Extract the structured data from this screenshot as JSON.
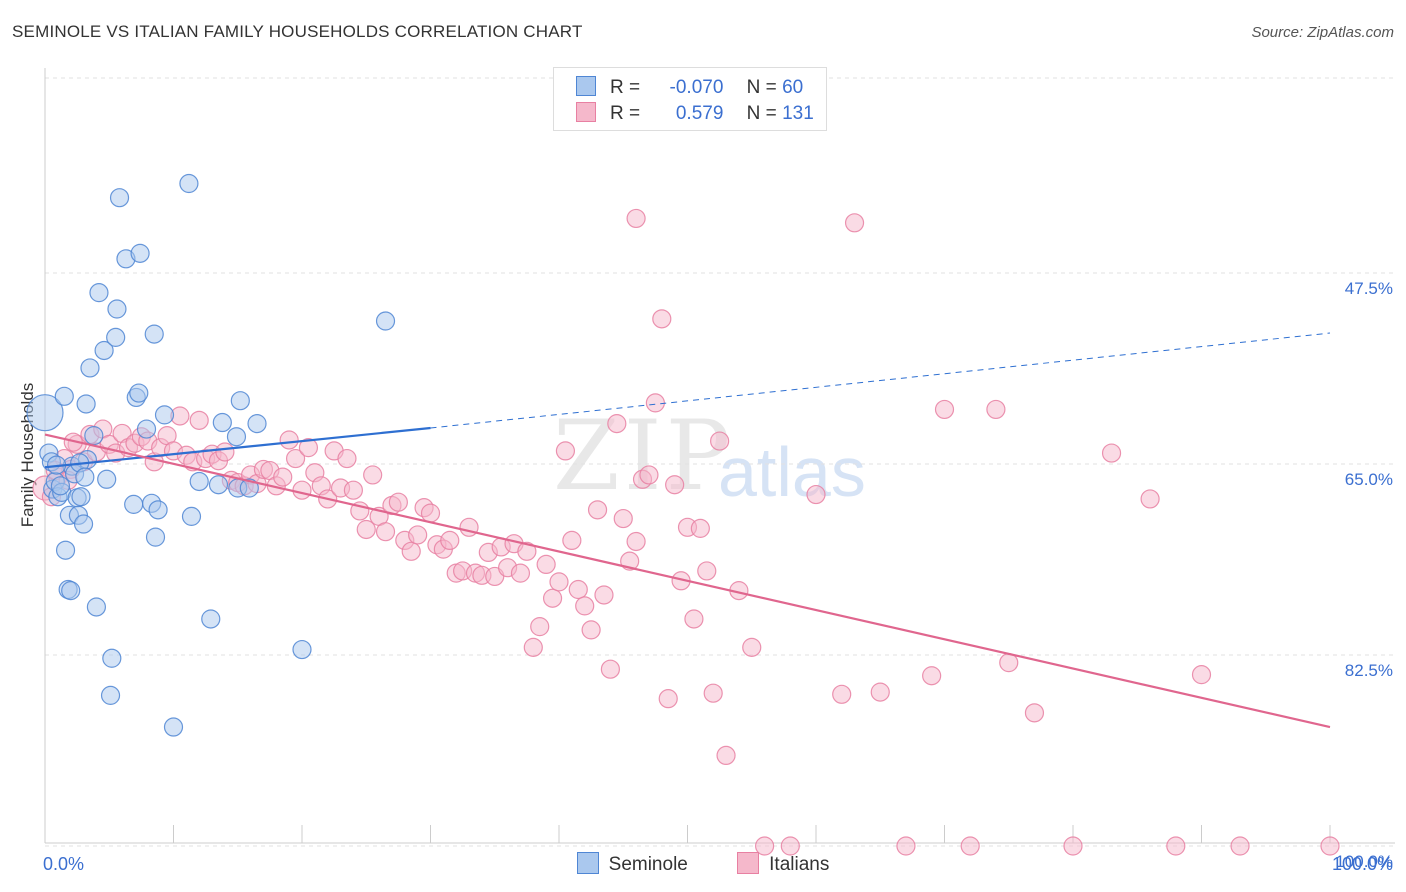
{
  "title": "SEMINOLE VS ITALIAN FAMILY HOUSEHOLDS CORRELATION CHART",
  "source": "Source: ZipAtlas.com",
  "watermark": {
    "zip": "ZIP",
    "atlas": "atlas"
  },
  "legend_top": {
    "rows": [
      {
        "r_label": "R =",
        "r_value": "-0.070",
        "n_label": "N =",
        "n_value": "60"
      },
      {
        "r_label": "R =",
        "r_value": "0.579",
        "n_label": "N =",
        "n_value": "131"
      }
    ]
  },
  "colors": {
    "seminole_fill": "#aac8ee",
    "seminole_stroke": "#4f86d4",
    "seminole_line": "#2e6fd1",
    "italians_fill": "#f5b8cb",
    "italians_stroke": "#e880a2",
    "italians_line": "#e0668e",
    "tick_label": "#3b6fd0",
    "grid": "#e2e2e2"
  },
  "chart_data": {
    "type": "scatter",
    "title": "SEMINOLE VS ITALIAN FAMILY HOUSEHOLDS CORRELATION CHART",
    "xlabel": "",
    "ylabel": "Family Households",
    "xlim": [
      0,
      100
    ],
    "ylim": [
      32.5,
      102.5
    ],
    "x_tick_labels": [
      "0.0%",
      "100.0%"
    ],
    "y_ticks": [
      47.5,
      65.0,
      82.5,
      100.0
    ],
    "y_tick_labels": [
      "47.5%",
      "65.0%",
      "82.5%",
      "100.0%"
    ],
    "grid": true,
    "legend_position": "bottom",
    "series": [
      {
        "name": "Seminole",
        "trend": {
          "x0": 0,
          "y0": 65.3,
          "x1": 30,
          "y1": 61.7,
          "dashed_to_x": 100,
          "dashed_to_y": 53.0
        },
        "points": [
          [
            0,
            60.3
          ],
          [
            0.3,
            64.0
          ],
          [
            0.5,
            64.8
          ],
          [
            0.6,
            67.3
          ],
          [
            0.8,
            66.6
          ],
          [
            1.0,
            68.0
          ],
          [
            1.3,
            67.6
          ],
          [
            1.5,
            58.8
          ],
          [
            1.6,
            72.9
          ],
          [
            1.8,
            76.5
          ],
          [
            1.9,
            69.7
          ],
          [
            2.0,
            76.6
          ],
          [
            2.1,
            65.2
          ],
          [
            2.3,
            65.9
          ],
          [
            2.5,
            68.1
          ],
          [
            2.6,
            69.7
          ],
          [
            2.8,
            68.0
          ],
          [
            3.0,
            70.5
          ],
          [
            3.2,
            59.5
          ],
          [
            3.3,
            64.6
          ],
          [
            3.5,
            56.2
          ],
          [
            3.8,
            62.4
          ],
          [
            4.0,
            78.1
          ],
          [
            4.2,
            49.3
          ],
          [
            4.6,
            54.6
          ],
          [
            5.1,
            86.2
          ],
          [
            5.2,
            82.8
          ],
          [
            5.5,
            53.4
          ],
          [
            5.6,
            50.8
          ],
          [
            5.8,
            40.6
          ],
          [
            6.3,
            46.2
          ],
          [
            6.9,
            68.7
          ],
          [
            7.1,
            58.9
          ],
          [
            7.3,
            58.5
          ],
          [
            7.4,
            45.7
          ],
          [
            7.9,
            61.8
          ],
          [
            8.3,
            68.6
          ],
          [
            8.5,
            53.1
          ],
          [
            8.6,
            71.7
          ],
          [
            8.8,
            69.2
          ],
          [
            9.3,
            60.5
          ],
          [
            10.0,
            89.1
          ],
          [
            11.2,
            39.3
          ],
          [
            11.4,
            69.8
          ],
          [
            12.0,
            66.6
          ],
          [
            12.9,
            79.2
          ],
          [
            13.5,
            66.9
          ],
          [
            13.8,
            61.2
          ],
          [
            14.9,
            62.5
          ],
          [
            15.0,
            67.2
          ],
          [
            15.2,
            59.2
          ],
          [
            15.9,
            67.2
          ],
          [
            16.5,
            61.3
          ],
          [
            20.0,
            82.0
          ],
          [
            26.5,
            51.9
          ],
          [
            1.2,
            67.0
          ],
          [
            2.7,
            64.9
          ],
          [
            3.1,
            66.2
          ],
          [
            0.9,
            65.1
          ],
          [
            4.8,
            66.4
          ]
        ]
      },
      {
        "name": "Italians",
        "trend": {
          "x0": 0,
          "y0": 62.3,
          "x1": 100,
          "y1": 89.1
        },
        "points": [
          [
            0,
            67.2
          ],
          [
            0.5,
            68.0
          ],
          [
            1.0,
            66.2
          ],
          [
            1.5,
            64.5
          ],
          [
            2.0,
            65.5
          ],
          [
            2.5,
            63.2
          ],
          [
            3.0,
            64.8
          ],
          [
            3.5,
            62.3
          ],
          [
            4.0,
            63.9
          ],
          [
            4.5,
            61.8
          ],
          [
            5.0,
            63.2
          ],
          [
            5.5,
            64.0
          ],
          [
            6.0,
            62.2
          ],
          [
            6.5,
            63.5
          ],
          [
            7.0,
            63.1
          ],
          [
            7.5,
            62.5
          ],
          [
            8.0,
            62.9
          ],
          [
            8.5,
            64.8
          ],
          [
            9.0,
            63.5
          ],
          [
            9.5,
            62.4
          ],
          [
            10.0,
            63.8
          ],
          [
            10.5,
            60.6
          ],
          [
            11.0,
            64.2
          ],
          [
            11.5,
            64.8
          ],
          [
            12.0,
            61.0
          ],
          [
            12.5,
            64.5
          ],
          [
            13.0,
            64.1
          ],
          [
            13.5,
            64.7
          ],
          [
            14.0,
            63.9
          ],
          [
            14.5,
            66.5
          ],
          [
            15.0,
            66.7
          ],
          [
            15.5,
            67.0
          ],
          [
            16.0,
            66.0
          ],
          [
            16.5,
            66.8
          ],
          [
            17.0,
            65.5
          ],
          [
            17.5,
            65.6
          ],
          [
            18.0,
            67.0
          ],
          [
            18.5,
            66.2
          ],
          [
            19.0,
            62.8
          ],
          [
            19.5,
            64.5
          ],
          [
            20.0,
            67.4
          ],
          [
            20.5,
            63.5
          ],
          [
            21.0,
            65.8
          ],
          [
            21.5,
            67.0
          ],
          [
            22.0,
            68.2
          ],
          [
            22.5,
            63.8
          ],
          [
            23.0,
            67.2
          ],
          [
            23.5,
            64.5
          ],
          [
            24.0,
            67.4
          ],
          [
            24.5,
            69.3
          ],
          [
            25.0,
            71.0
          ],
          [
            25.5,
            66.0
          ],
          [
            26.0,
            69.8
          ],
          [
            26.5,
            71.2
          ],
          [
            27.0,
            68.8
          ],
          [
            27.5,
            68.5
          ],
          [
            28.0,
            72.0
          ],
          [
            28.5,
            73.0
          ],
          [
            29.0,
            71.5
          ],
          [
            29.5,
            69.0
          ],
          [
            30.0,
            69.5
          ],
          [
            30.5,
            72.4
          ],
          [
            31.0,
            72.8
          ],
          [
            31.5,
            72.0
          ],
          [
            32.0,
            75.0
          ],
          [
            32.5,
            74.8
          ],
          [
            33.0,
            70.8
          ],
          [
            33.5,
            75.0
          ],
          [
            34.0,
            75.2
          ],
          [
            34.5,
            73.1
          ],
          [
            35.0,
            75.3
          ],
          [
            35.5,
            72.6
          ],
          [
            36.0,
            74.5
          ],
          [
            36.5,
            72.3
          ],
          [
            37.0,
            75.0
          ],
          [
            37.5,
            73.0
          ],
          [
            38.0,
            81.8
          ],
          [
            38.5,
            79.9
          ],
          [
            39.0,
            74.2
          ],
          [
            39.5,
            77.3
          ],
          [
            40.0,
            75.8
          ],
          [
            40.5,
            63.8
          ],
          [
            41.0,
            72.0
          ],
          [
            41.5,
            76.5
          ],
          [
            42.0,
            78.0
          ],
          [
            42.5,
            80.2
          ],
          [
            43.0,
            69.2
          ],
          [
            43.5,
            77.0
          ],
          [
            44.0,
            83.8
          ],
          [
            44.5,
            61.3
          ],
          [
            45.0,
            70.0
          ],
          [
            45.5,
            73.9
          ],
          [
            46.0,
            72.1
          ],
          [
            46.5,
            66.4
          ],
          [
            47.0,
            66.0
          ],
          [
            47.5,
            59.4
          ],
          [
            48.0,
            51.7
          ],
          [
            48.5,
            86.5
          ],
          [
            49.0,
            66.9
          ],
          [
            49.5,
            75.7
          ],
          [
            50.0,
            70.8
          ],
          [
            50.5,
            79.2
          ],
          [
            51.0,
            70.9
          ],
          [
            51.5,
            74.8
          ],
          [
            52.0,
            86.0
          ],
          [
            52.5,
            62.9
          ],
          [
            53.0,
            91.7
          ],
          [
            54.0,
            76.6
          ],
          [
            55.0,
            81.8
          ],
          [
            56.0,
            100.0
          ],
          [
            58.0,
            100.0
          ],
          [
            60.0,
            67.8
          ],
          [
            62.0,
            86.1
          ],
          [
            63.0,
            42.9
          ],
          [
            65.0,
            85.9
          ],
          [
            67.0,
            100.0
          ],
          [
            69.0,
            84.4
          ],
          [
            70.0,
            60.0
          ],
          [
            72.0,
            100.0
          ],
          [
            74.0,
            60.0
          ],
          [
            75.0,
            83.2
          ],
          [
            77.0,
            87.8
          ],
          [
            80.0,
            100.0
          ],
          [
            83.0,
            64.0
          ],
          [
            86.0,
            68.2
          ],
          [
            88.0,
            100.0
          ],
          [
            90.0,
            84.3
          ],
          [
            93.0,
            100.0
          ],
          [
            100.0,
            100.0
          ],
          [
            46.0,
            42.5
          ],
          [
            0.8,
            65.6
          ],
          [
            1.8,
            66.5
          ],
          [
            2.2,
            63.0
          ]
        ]
      }
    ]
  }
}
